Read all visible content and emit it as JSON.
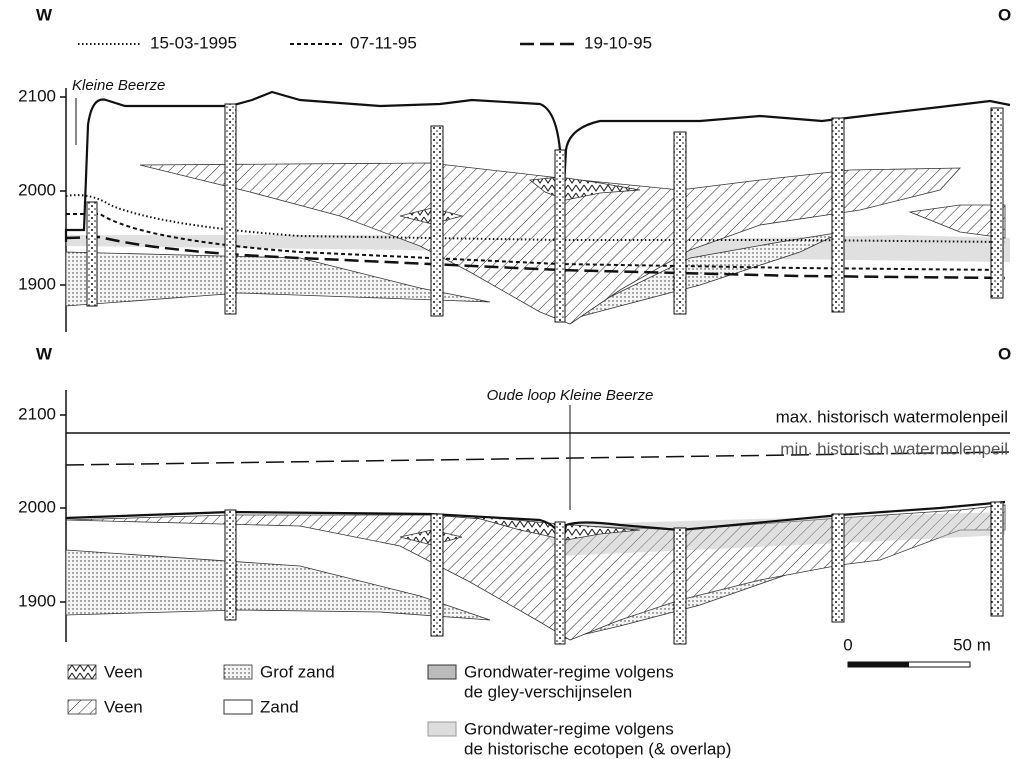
{
  "top_panel": {
    "west": "W",
    "east": "O",
    "water_levels": [
      {
        "label": "15-03-1995"
      },
      {
        "label": "07-11-95"
      },
      {
        "label": "19-10-95"
      }
    ],
    "river_label": "Kleine Beerze",
    "y_axis": [
      "2100",
      "2000",
      "1900"
    ]
  },
  "bottom_panel": {
    "west": "W",
    "east": "O",
    "river_label": "Oude loop Kleine Beerze",
    "max_level": "max. historisch watermolenpeil",
    "min_level": "min. historisch watermolenpeil",
    "y_axis": [
      "2100",
      "2000",
      "1900"
    ]
  },
  "scale_bar": {
    "start": "0",
    "end": "50 m"
  },
  "legend": [
    {
      "label": "Veen"
    },
    {
      "label": "Veen"
    },
    {
      "label": "Grof zand"
    },
    {
      "label": "Zand"
    },
    {
      "lines": [
        "Grondwater-regime volgens",
        "de gley-verschijnselen"
      ]
    },
    {
      "lines": [
        "Grondwater-regime volgens",
        "de historische ecotopen (& overlap)"
      ]
    }
  ]
}
